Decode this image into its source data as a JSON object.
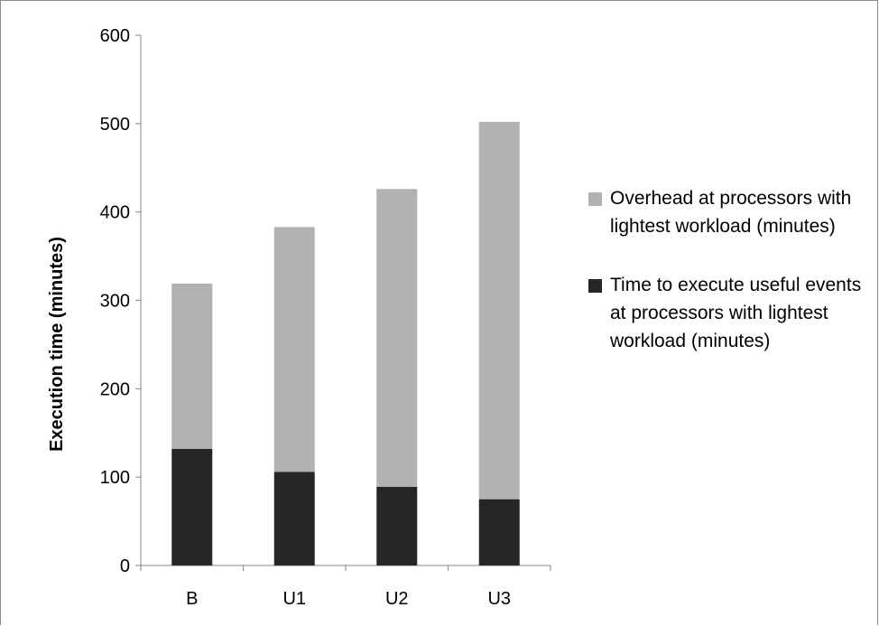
{
  "chart_data": {
    "type": "bar",
    "stacked": true,
    "categories": [
      "B",
      "U1",
      "U2",
      "U3"
    ],
    "series": [
      {
        "name": "Time to execute useful events at processors with lightest workload (minutes)",
        "values": [
          132,
          106,
          89,
          75
        ],
        "color": "#262626"
      },
      {
        "name": "Overhead at processors with lightest workload (minutes)",
        "values": [
          187,
          277,
          337,
          427
        ],
        "color": "#b2b2b2"
      }
    ],
    "ylabel": "Execution time (minutes)",
    "ylim": [
      0,
      600
    ],
    "yticks": [
      0,
      100,
      200,
      300,
      400,
      500,
      600
    ],
    "grid": false,
    "legend_position": "right"
  },
  "legend": {
    "items": [
      {
        "label": "Overhead at processors with lightest workload (minutes)",
        "color": "#b2b2b2"
      },
      {
        "label": "Time to execute useful events at processors with lightest workload (minutes)",
        "color": "#262626"
      }
    ]
  }
}
